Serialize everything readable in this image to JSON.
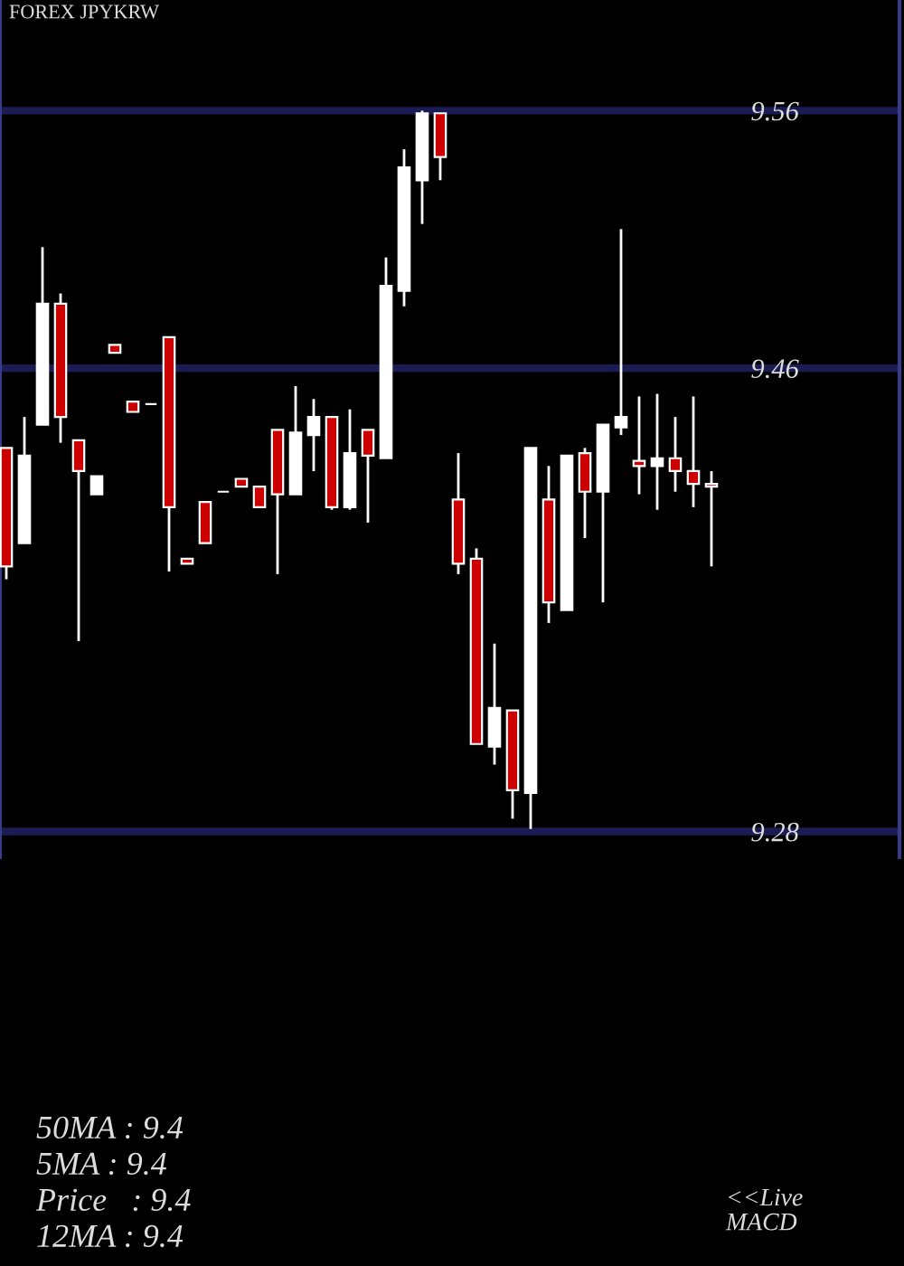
{
  "chart_data": {
    "type": "candlestick",
    "title": "FOREX JPYKRW",
    "categories": [
      null,
      null,
      null,
      null,
      null,
      null,
      null,
      null,
      null,
      null,
      null,
      null,
      null,
      null,
      null,
      null,
      null,
      null,
      null,
      null,
      null,
      null,
      null,
      null,
      null,
      null,
      null,
      null,
      null,
      null,
      null,
      null,
      null,
      null,
      null,
      null,
      null,
      null,
      null,
      null
    ],
    "ohlc": [
      [
        9.429,
        9.429,
        9.378,
        9.383
      ],
      [
        9.392,
        9.441,
        9.392,
        9.426
      ],
      [
        9.438,
        9.507,
        9.438,
        9.485
      ],
      [
        9.485,
        9.489,
        9.431,
        9.441
      ],
      [
        9.432,
        9.432,
        9.354,
        9.42
      ],
      [
        9.411,
        9.418,
        9.411,
        9.418
      ],
      [
        9.469,
        9.469,
        9.466,
        9.466
      ],
      [
        9.447,
        9.447,
        9.443,
        9.443
      ],
      [
        9.446,
        9.446,
        9.446,
        9.446
      ],
      [
        9.472,
        9.472,
        9.381,
        9.406
      ],
      [
        9.386,
        9.386,
        9.384,
        9.384
      ],
      [
        9.408,
        9.408,
        9.392,
        9.392
      ],
      [
        9.412,
        9.412,
        9.412,
        9.412
      ],
      [
        9.417,
        9.417,
        9.414,
        9.414
      ],
      [
        9.414,
        9.414,
        9.406,
        9.406
      ],
      [
        9.436,
        9.436,
        9.38,
        9.411
      ],
      [
        9.411,
        9.453,
        9.411,
        9.435
      ],
      [
        9.434,
        9.448,
        9.42,
        9.441
      ],
      [
        9.441,
        9.441,
        9.405,
        9.406
      ],
      [
        9.406,
        9.444,
        9.405,
        9.427
      ],
      [
        9.436,
        9.436,
        9.4,
        9.426
      ],
      [
        9.425,
        9.503,
        9.425,
        9.492
      ],
      [
        9.49,
        9.545,
        9.484,
        9.538
      ],
      [
        9.533,
        9.56,
        9.516,
        9.559
      ],
      [
        9.559,
        9.559,
        9.533,
        9.542
      ],
      [
        9.409,
        9.427,
        9.38,
        9.384
      ],
      [
        9.386,
        9.39,
        9.314,
        9.314
      ],
      [
        9.313,
        9.353,
        9.306,
        9.328
      ],
      [
        9.327,
        9.327,
        9.285,
        9.296
      ],
      [
        9.295,
        9.429,
        9.281,
        9.429
      ],
      [
        9.409,
        9.422,
        9.361,
        9.369
      ],
      [
        9.366,
        9.426,
        9.366,
        9.426
      ],
      [
        9.427,
        9.429,
        9.394,
        9.412
      ],
      [
        9.412,
        9.438,
        9.369,
        9.438
      ],
      [
        9.437,
        9.514,
        9.434,
        9.441
      ],
      [
        9.424,
        9.449,
        9.411,
        9.422
      ],
      [
        9.422,
        9.45,
        9.405,
        9.425
      ],
      [
        9.425,
        9.441,
        9.412,
        9.42
      ],
      [
        9.42,
        9.449,
        9.406,
        9.415
      ],
      [
        9.415,
        9.42,
        9.383,
        9.414
      ]
    ],
    "colors": [
      "#cc0000",
      "#ffffff",
      "#ffffff",
      "#cc0000",
      "#cc0000",
      "#ffffff",
      "#cc0000",
      "#cc0000",
      "#ffffff",
      "#cc0000",
      "#cc0000",
      "#cc0000",
      "#ffffff",
      "#cc0000",
      "#cc0000",
      "#cc0000",
      "#ffffff",
      "#ffffff",
      "#cc0000",
      "#ffffff",
      "#cc0000",
      "#ffffff",
      "#ffffff",
      "#ffffff",
      "#cc0000",
      "#cc0000",
      "#cc0000",
      "#ffffff",
      "#cc0000",
      "#ffffff",
      "#cc0000",
      "#ffffff",
      "#cc0000",
      "#ffffff",
      "#ffffff",
      "#cc0000",
      "#ffffff",
      "#cc0000",
      "#cc0000",
      "#cc0000"
    ],
    "ylim": [
      9.27,
      9.603
    ],
    "yticks": [
      9.28,
      9.46,
      9.56
    ],
    "grid": "y",
    "annotations": [
      "50MA : 9.4",
      "5MA : 9.4",
      "Price   : 9.4",
      "12MA : 9.4",
      "<<Live\nMACD"
    ]
  }
}
